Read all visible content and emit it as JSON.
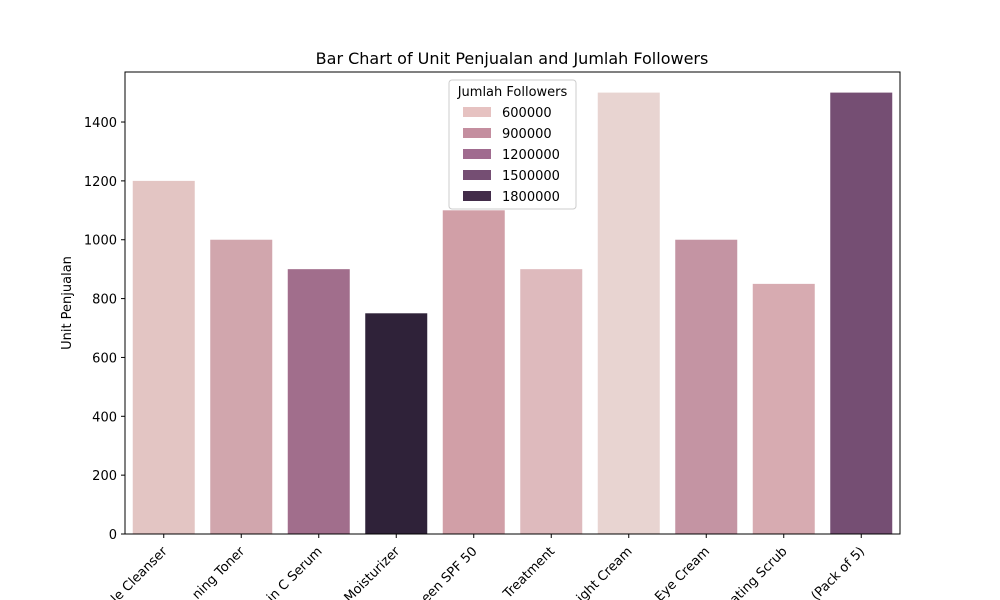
{
  "chart_data": {
    "type": "bar",
    "title": "Bar Chart of Unit Penjualan and Jumlah Followers",
    "xlabel": "",
    "ylabel": "Unit Penjualan",
    "ylim": [
      0,
      1570
    ],
    "yticks": [
      0,
      200,
      400,
      600,
      800,
      1000,
      1200,
      1400
    ],
    "categories": [
      "le Cleanser",
      "ning Toner",
      "in C Serum",
      "Moisturizer",
      "een SPF 50",
      "Treatment",
      "ight Cream",
      "Eye Cream",
      "ating Scrub",
      "(Pack of 5)"
    ],
    "values": [
      1200,
      1000,
      900,
      750,
      1100,
      900,
      1500,
      1000,
      850,
      1500
    ],
    "bar_colors": [
      "#e3c5c3",
      "#d1a6ad",
      "#a16e8c",
      "#2f2239",
      "#d19fa7",
      "#debabd",
      "#e8d4d1",
      "#c494a3",
      "#d7abb1",
      "#754e73"
    ],
    "grid": false,
    "legend": {
      "title": "Jumlah Followers",
      "position": "top-center",
      "entries": [
        {
          "label": "600000",
          "color": "#e6c2c1"
        },
        {
          "label": "900000",
          "color": "#c48e9f"
        },
        {
          "label": "1200000",
          "color": "#a06b8f"
        },
        {
          "label": "1500000",
          "color": "#754e73"
        },
        {
          "label": "1800000",
          "color": "#422c49"
        }
      ]
    }
  }
}
